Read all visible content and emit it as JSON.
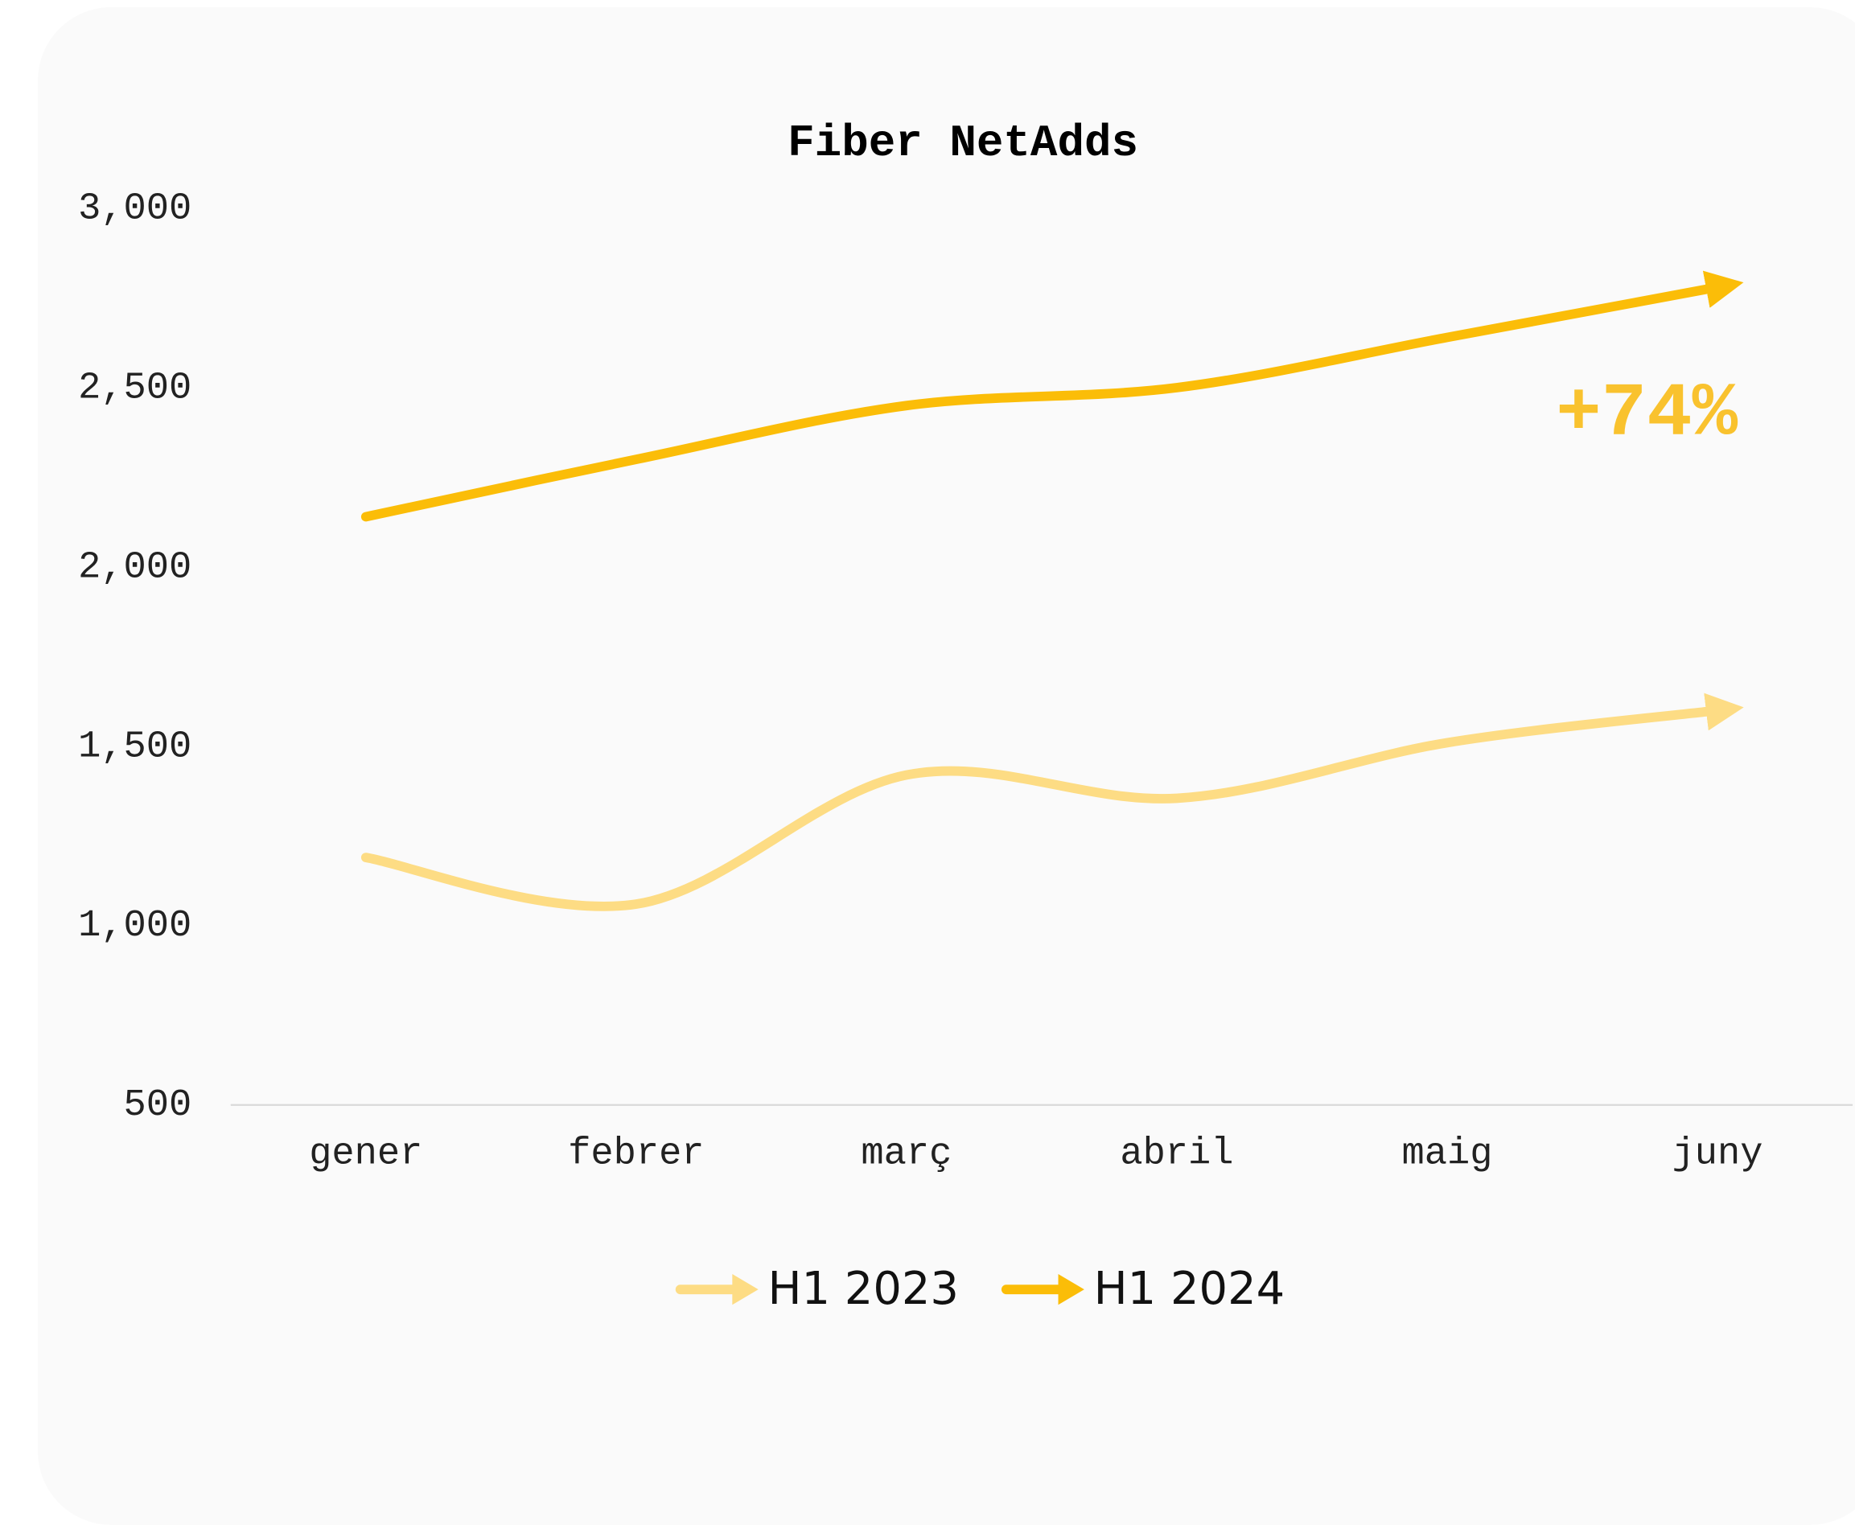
{
  "chart_data": {
    "type": "line",
    "title": "Fiber NetAdds",
    "categories": [
      "gener",
      "febrer",
      "març",
      "abril",
      "maig",
      "juny"
    ],
    "series": [
      {
        "name": "H1 2023",
        "color": "#fddc84",
        "values": [
          1190,
          1060,
          1420,
          1355,
          1510,
          1600
        ]
      },
      {
        "name": "H1 2024",
        "color": "#fbbd08",
        "values": [
          2140,
          2300,
          2450,
          2500,
          2640,
          2780
        ]
      }
    ],
    "annotation": "+74%",
    "annotation_color": "#f9c22e",
    "ylim": [
      500,
      3000
    ],
    "yticks": [
      500,
      {
        "value": 1000,
        "label": "1,000"
      },
      {
        "value": 1500,
        "label": "1,500"
      },
      {
        "value": 2000,
        "label": "2,000"
      },
      {
        "value": 2500,
        "label": "2,500"
      },
      {
        "value": 3000,
        "label": "3,000"
      }
    ],
    "grid": false,
    "smooth": true,
    "legend": "bottom"
  }
}
